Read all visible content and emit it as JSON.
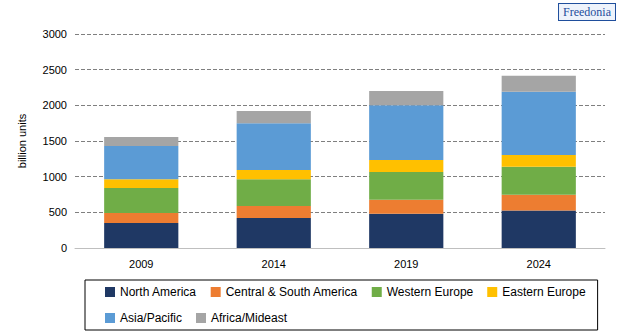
{
  "chart_data": {
    "type": "bar",
    "stacked": true,
    "grid": true,
    "legend": "bottom",
    "ylabel": "billion units",
    "annotations": [
      "Freedonia"
    ],
    "categories": [
      "2009",
      "2014",
      "2019",
      "2024"
    ],
    "ylim": [
      0,
      3000
    ],
    "yticks": [
      0,
      500,
      1000,
      1500,
      2000,
      2500,
      3000
    ],
    "series": [
      {
        "name": "North America",
        "color": "#1f3864",
        "values": [
          350,
          420,
          480,
          525
        ]
      },
      {
        "name": "Central & South America",
        "color": "#ed7d31",
        "values": [
          140,
          170,
          195,
          220
        ]
      },
      {
        "name": "Western Europe",
        "color": "#70ad47",
        "values": [
          350,
          375,
          390,
          395
        ]
      },
      {
        "name": "Eastern Europe",
        "color": "#ffc000",
        "values": [
          125,
          130,
          170,
          165
        ]
      },
      {
        "name": "Asia/Pacific",
        "color": "#5b9bd5",
        "values": [
          465,
          655,
          765,
          885
        ]
      },
      {
        "name": "Africa/Mideast",
        "color": "#a5a5a5",
        "values": [
          125,
          170,
          200,
          225
        ]
      }
    ]
  }
}
